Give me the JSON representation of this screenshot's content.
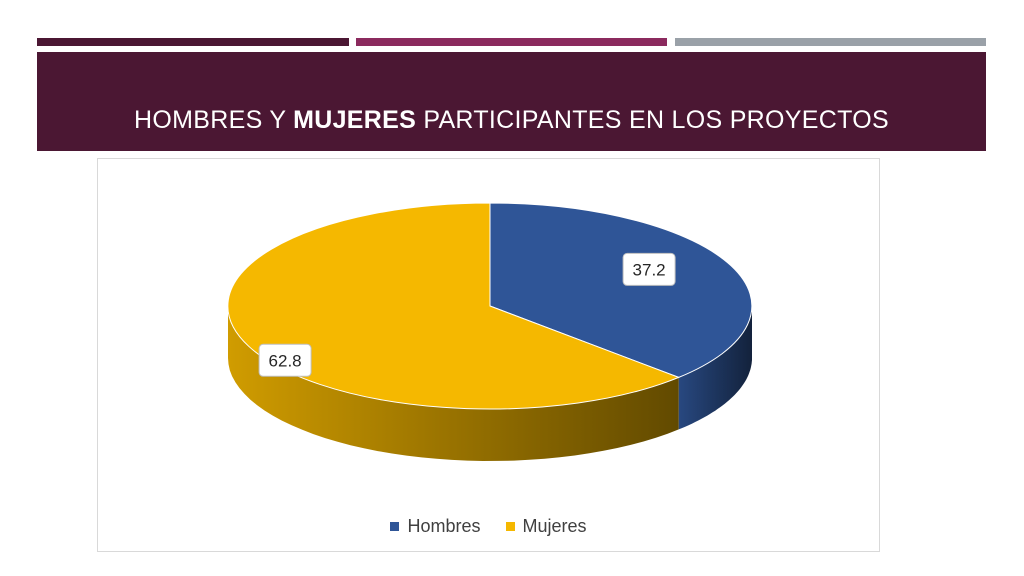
{
  "title": {
    "part1": "HOMBRES Y ",
    "part2": "MUJERES",
    "part3": " PARTICIPANTES EN LOS PROYECTOS"
  },
  "colors": {
    "bar1": "#4b1733",
    "bar2": "#8b2a5e",
    "bar3": "#9aa1a8",
    "hombres": "#2f5597",
    "mujeres": "#f5b800"
  },
  "chart_data": {
    "type": "pie",
    "style": "3d",
    "title": "",
    "categories": [
      "Hombres",
      "Mujeres"
    ],
    "values": [
      37.2,
      62.8
    ],
    "data_labels": [
      "37.2",
      "62.8"
    ],
    "legend_position": "bottom"
  }
}
